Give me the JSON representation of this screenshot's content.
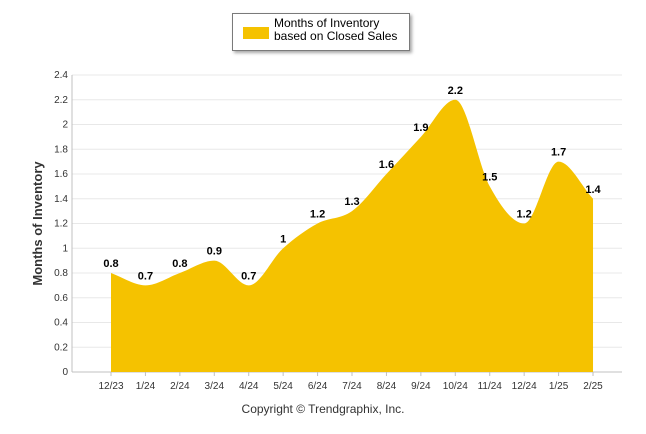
{
  "chart_data": {
    "type": "area",
    "categories": [
      "12/23",
      "1/24",
      "2/24",
      "3/24",
      "4/24",
      "5/24",
      "6/24",
      "7/24",
      "8/24",
      "9/24",
      "10/24",
      "11/24",
      "12/24",
      "1/25",
      "2/25"
    ],
    "series": [
      {
        "name": "Months of Inventory based on Closed Sales",
        "values": [
          0.8,
          0.7,
          0.8,
          0.9,
          0.7,
          1,
          1.2,
          1.3,
          1.6,
          1.9,
          2.2,
          1.5,
          1.2,
          1.7,
          1.4
        ],
        "labels": [
          "0.8",
          "0.7",
          "0.8",
          "0.9",
          "0.7",
          "1",
          "1.2",
          "1.3",
          "1.6",
          "1.9",
          "2.2",
          "1.5",
          "1.2",
          "1.7",
          "1.4"
        ]
      }
    ],
    "ylabel": "Months of Inventory",
    "xlabel": "",
    "ylim": [
      0,
      2.4
    ],
    "yticks": [
      "0",
      "0.2",
      "0.4",
      "0.6",
      "0.8",
      "1",
      "1.2",
      "1.4",
      "1.6",
      "1.8",
      "2",
      "2.2",
      "2.4"
    ],
    "grid": true,
    "legend_position": "top-center",
    "colors": {
      "fill": "#F5C200",
      "grid": "#e8e8e8",
      "axis": "#c0c0c0"
    }
  },
  "legend": {
    "label": "Months of Inventory based on Closed Sales"
  },
  "footer": {
    "copyright": "Copyright © Trendgraphix, Inc."
  }
}
